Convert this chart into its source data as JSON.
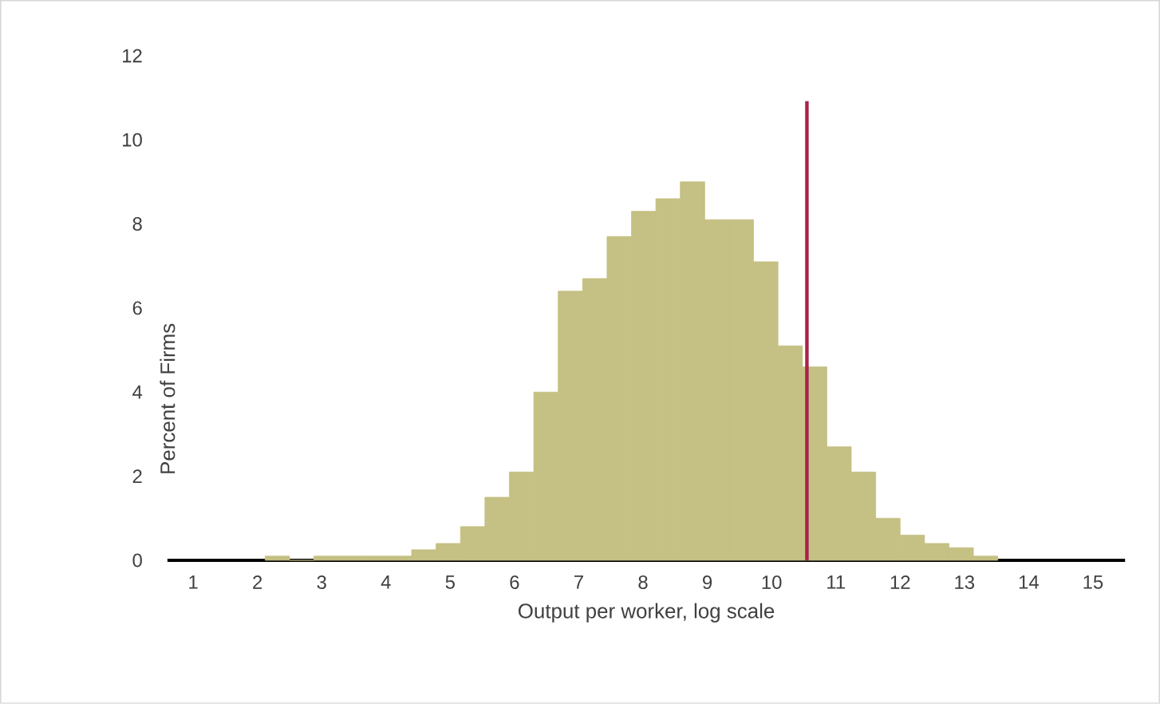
{
  "chart_data": {
    "type": "histogram",
    "xlabel": "Output per worker, log scale",
    "ylabel": "Percent of Firms",
    "bins": [
      2.12,
      2.5,
      2.88,
      3.26,
      3.64,
      4.02,
      4.4,
      4.78,
      5.16,
      5.54,
      5.92,
      6.3,
      6.68,
      7.06,
      7.44,
      7.82,
      8.2,
      8.58,
      8.96,
      9.34,
      9.72,
      10.1,
      10.48,
      10.86,
      11.24,
      11.62,
      12.0,
      12.38,
      12.76,
      13.14,
      13.52
    ],
    "values": [
      0.1,
      0,
      0.1,
      0.1,
      0.1,
      0.1,
      0.25,
      0.4,
      0.8,
      1.5,
      2.1,
      4.0,
      6.4,
      6.7,
      7.7,
      8.3,
      8.6,
      9.0,
      8.1,
      8.1,
      7.1,
      5.1,
      4.6,
      2.7,
      2.1,
      1.0,
      0.6,
      0.4,
      0.3,
      0.1
    ],
    "color": "#c5c083",
    "xlim": [
      0.6,
      15.5
    ],
    "xticks": [
      1,
      2,
      3,
      4,
      5,
      6,
      7,
      8,
      9,
      10,
      11,
      12,
      13,
      14,
      15
    ],
    "ylim": [
      0,
      12
    ],
    "yticks": [
      0,
      2,
      4,
      6,
      8,
      10,
      12
    ],
    "grid": false,
    "ref_lines": [
      {
        "axis": "x",
        "value": 10.55,
        "color": "#a8224a"
      }
    ]
  }
}
